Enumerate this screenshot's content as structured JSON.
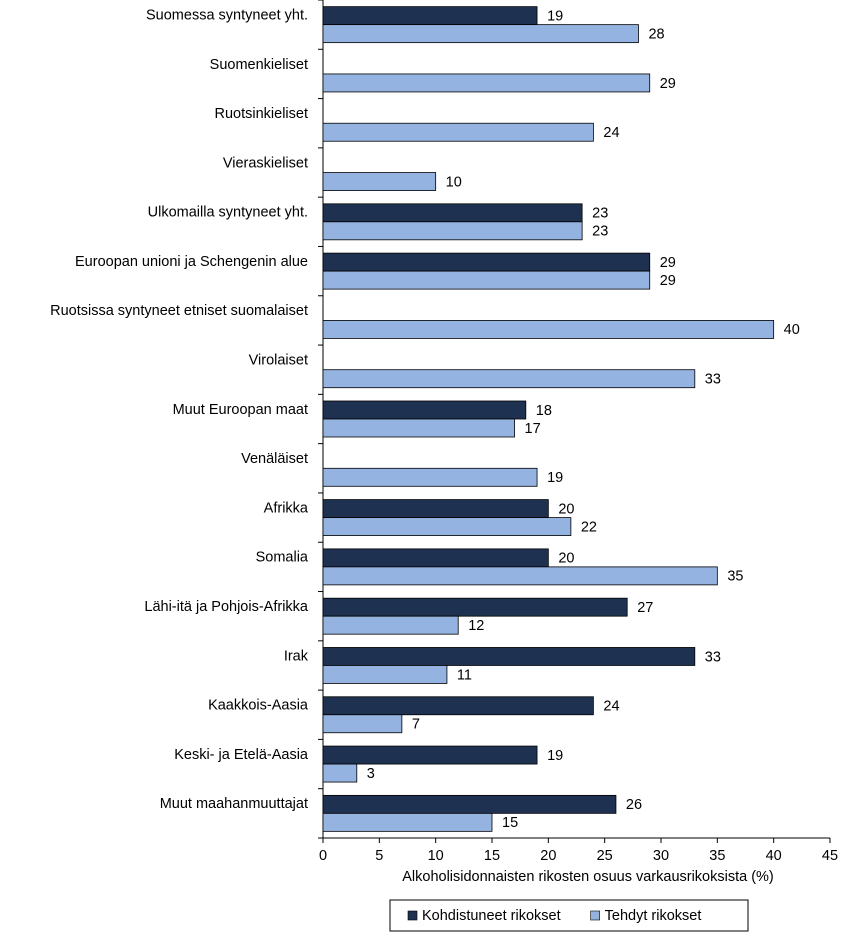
{
  "chart_data": {
    "type": "bar",
    "orientation": "horizontal",
    "x_label": "Alkoholisidonnaisten  rikosten osuus varkausrikoksista  (%)",
    "categories": [
      "Suomessa syntyneet yht.",
      "Suomenkieliset",
      "Ruotsinkieliset",
      "Vieraskieliset",
      "Ulkomailla syntyneet yht.",
      "Euroopan unioni ja Schengenin alue",
      "Ruotsissa syntyneet etniset suomalaiset",
      "Virolaiset",
      "Muut Euroopan maat",
      "Venäläiset",
      "Afrikka",
      "Somalia",
      "Lähi-itä ja Pohjois-Afrikka",
      "Irak",
      "Kaakkois-Aasia",
      "Keski- ja Etelä-Aasia",
      "Muut maahanmuuttajat"
    ],
    "series": [
      {
        "name": "Kohdistuneet rikokset",
        "color": "#1f3150",
        "values": [
          19,
          null,
          null,
          null,
          23,
          29,
          null,
          null,
          18,
          null,
          20,
          20,
          27,
          33,
          24,
          19,
          26
        ]
      },
      {
        "name": "Tehdyt rikokset",
        "color": "#95b3e0",
        "values": [
          28,
          29,
          24,
          10,
          23,
          29,
          40,
          33,
          17,
          19,
          22,
          35,
          12,
          11,
          7,
          3,
          15
        ]
      }
    ],
    "xlim": [
      0,
      45
    ],
    "xticks": [
      0,
      5,
      10,
      15,
      20,
      25,
      30,
      35,
      40,
      45
    ],
    "legend": "bottom"
  }
}
